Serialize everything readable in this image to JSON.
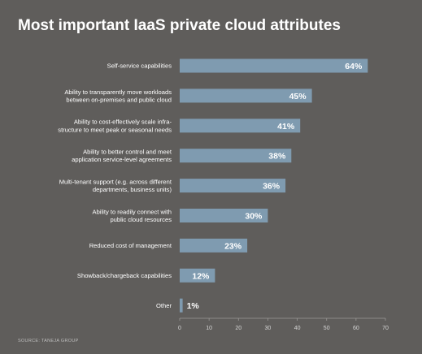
{
  "chart_data": {
    "type": "bar",
    "orientation": "horizontal",
    "title": "Most important IaaS private cloud attributes",
    "categories": [
      [
        "Self-service capabilities"
      ],
      [
        "Ability to transparently move workloads",
        "between on-premises and public cloud"
      ],
      [
        "Ability to cost-effectively scale infra-",
        "structure to meet peak or seasonal needs"
      ],
      [
        "Ability to better control and meet",
        "application service-level agreements"
      ],
      [
        "Multi-tenant support (e.g. across different",
        "departments, business units)"
      ],
      [
        "Ability to readily connect with",
        "public cloud resources"
      ],
      [
        "Reduced cost of management"
      ],
      [
        "Showback/chargeback capabilities"
      ],
      [
        "Other"
      ]
    ],
    "values": [
      64,
      45,
      41,
      38,
      36,
      30,
      23,
      12,
      1
    ],
    "value_labels": [
      "64%",
      "45%",
      "41%",
      "38%",
      "36%",
      "30%",
      "23%",
      "12%",
      "1%"
    ],
    "xlim": [
      0,
      70
    ],
    "xticks": [
      0,
      10,
      20,
      30,
      40,
      50,
      60,
      70
    ],
    "xlabel": "",
    "ylabel": "",
    "grid": false,
    "legend": "none",
    "source": "SOURCE: TANEJA GROUP",
    "colors": {
      "background": "#5f5d5b",
      "bar": "#7f9bb0",
      "axis": "#9a9896",
      "text": "#ffffff",
      "tick": "#d6d6d6"
    }
  }
}
